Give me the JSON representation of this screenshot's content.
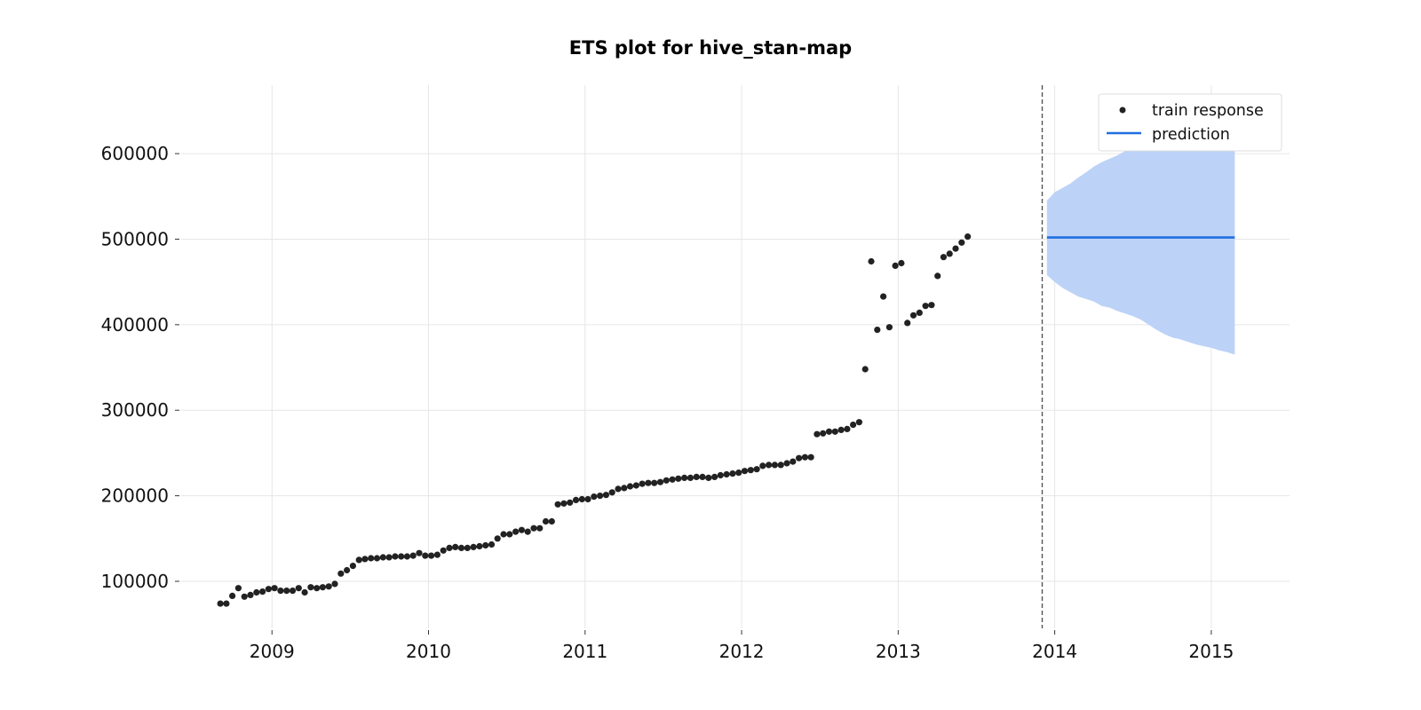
{
  "chart_data": {
    "type": "scatter",
    "title": "ETS plot for hive_stan-map",
    "xlabel": "",
    "ylabel": "",
    "xlim": [
      2008.42,
      2015.5
    ],
    "ylim": [
      45000,
      680000
    ],
    "x_ticks": [
      2009,
      2010,
      2011,
      2012,
      2013,
      2014,
      2015
    ],
    "x_tick_labels": [
      "2009",
      "2010",
      "2011",
      "2012",
      "2013",
      "2014",
      "2015"
    ],
    "y_ticks": [
      100000,
      200000,
      300000,
      400000,
      500000,
      600000
    ],
    "y_tick_labels": [
      "100000",
      "200000",
      "300000",
      "400000",
      "500000",
      "600000"
    ],
    "grid": true,
    "legend_position": "top-right",
    "train_end": 2013.92,
    "series": [
      {
        "name": "train response",
        "kind": "scatter",
        "color": "#222222",
        "x_start": 2008.67,
        "x_step": 0.0385,
        "values": [
          74000,
          74000,
          83000,
          92000,
          82000,
          84000,
          87000,
          88000,
          91000,
          92000,
          89000,
          89000,
          89000,
          92000,
          87000,
          93000,
          92000,
          93000,
          94000,
          97000,
          109000,
          113000,
          118000,
          125000,
          126000,
          127000,
          127000,
          128000,
          128000,
          129000,
          129000,
          129000,
          130000,
          133000,
          130000,
          130000,
          131000,
          136000,
          139000,
          140000,
          139000,
          139000,
          140000,
          141000,
          142000,
          143000,
          150000,
          155000,
          155000,
          158000,
          160000,
          158000,
          162000,
          162000,
          170000,
          170000,
          190000,
          191000,
          192000,
          195000,
          196000,
          196000,
          199000,
          200000,
          201000,
          204000,
          208000,
          209000,
          211000,
          212000,
          214000,
          215000,
          215000,
          216000,
          218000,
          219000,
          220000,
          221000,
          221000,
          222000,
          222000,
          221000,
          222000,
          224000,
          225000,
          226000,
          227000,
          229000,
          230000,
          231000,
          235000,
          236000,
          236000,
          236000,
          238000,
          240000,
          244000,
          245000,
          245000,
          272000,
          273000,
          275000,
          275000,
          277000,
          278000,
          283000,
          286000,
          348000,
          474000,
          394000,
          433000,
          397000,
          469000,
          472000,
          402000,
          411000,
          414000,
          422000,
          423000,
          457000,
          479000,
          483000,
          489000,
          496000,
          503000
        ]
      },
      {
        "name": "prediction",
        "kind": "line",
        "color": "#1f6fe0",
        "x": [
          2013.95,
          2015.15
        ],
        "values": [
          502000,
          502000
        ]
      }
    ],
    "interval": {
      "color": "#bcd2f7",
      "x": [
        2013.95,
        2014.0,
        2014.05,
        2014.1,
        2014.15,
        2014.2,
        2014.25,
        2014.3,
        2014.35,
        2014.4,
        2014.45,
        2014.5,
        2014.55,
        2014.6,
        2014.65,
        2014.7,
        2014.75,
        2014.8,
        2014.85,
        2014.9,
        2014.95,
        2015.0,
        2015.05,
        2015.1,
        2015.15
      ],
      "upper": [
        545000,
        555000,
        560000,
        565000,
        572000,
        578000,
        585000,
        590000,
        594000,
        598000,
        603000,
        608000,
        612000,
        616000,
        620000,
        624000,
        628000,
        632000,
        635000,
        638000,
        640000,
        641000,
        643000,
        645000,
        647000
      ],
      "lower": [
        458000,
        450000,
        443000,
        438000,
        433000,
        430000,
        427000,
        422000,
        420000,
        416000,
        413000,
        410000,
        406000,
        400000,
        394000,
        389000,
        385000,
        383000,
        380000,
        377000,
        375000,
        373000,
        370000,
        368000,
        365000
      ]
    }
  }
}
